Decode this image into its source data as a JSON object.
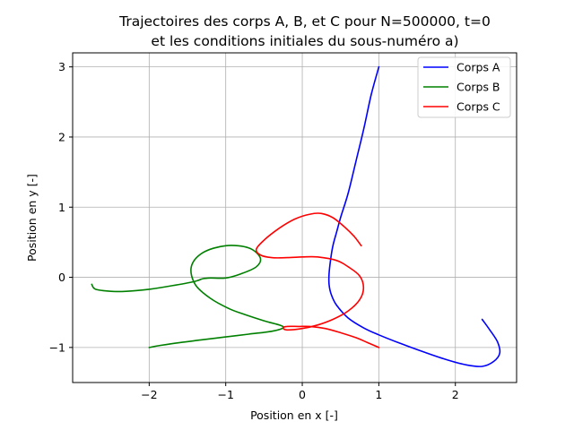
{
  "chart_data": {
    "type": "line",
    "title": "Trajectoires des corps A, B, et C pour N=500000, t=0",
    "subtitle": "et les conditions initiales du sous-numéro a)",
    "xlabel": "Position en x [-]",
    "ylabel": "Position en y [-]",
    "xlim": [
      -3.0,
      2.8
    ],
    "ylim": [
      -1.5,
      3.2
    ],
    "xticks": [
      -2,
      -1,
      0,
      1,
      2
    ],
    "yticks": [
      -1,
      0,
      1,
      2,
      3
    ],
    "grid": true,
    "legend_position": "top-right",
    "series": [
      {
        "name": "Corps A",
        "color": "#0000ff",
        "x": [
          1.0,
          0.9,
          0.8,
          0.7,
          0.6,
          0.5,
          0.45,
          0.4,
          0.37,
          0.35,
          0.35,
          0.38,
          0.45,
          0.6,
          0.8,
          1.0,
          1.3,
          1.6,
          1.9,
          2.15,
          2.35,
          2.5,
          2.58,
          2.55,
          2.45,
          2.35
        ],
        "y": [
          3.0,
          2.6,
          2.1,
          1.65,
          1.2,
          0.85,
          0.65,
          0.45,
          0.25,
          0.05,
          -0.1,
          -0.25,
          -0.4,
          -0.58,
          -0.72,
          -0.82,
          -0.95,
          -1.07,
          -1.18,
          -1.25,
          -1.27,
          -1.2,
          -1.08,
          -0.92,
          -0.75,
          -0.6
        ]
      },
      {
        "name": "Corps B",
        "color": "#008000",
        "x": [
          -2.75,
          -2.7,
          -2.5,
          -2.3,
          -2.0,
          -1.7,
          -1.45,
          -1.35,
          -1.3,
          -1.2,
          -1.0,
          -0.8,
          -0.6,
          -0.55,
          -0.7,
          -1.0,
          -1.3,
          -1.45,
          -1.4,
          -1.2,
          -0.95,
          -0.75,
          -0.5,
          -0.3,
          -0.25,
          -0.4,
          -0.7,
          -1.0,
          -1.3,
          -1.6,
          -1.85,
          -2.0
        ],
        "y": [
          -0.1,
          -0.17,
          -0.2,
          -0.2,
          -0.17,
          -0.12,
          -0.07,
          -0.04,
          -0.02,
          -0.01,
          -0.01,
          0.05,
          0.15,
          0.28,
          0.42,
          0.45,
          0.35,
          0.15,
          -0.1,
          -0.3,
          -0.45,
          -0.53,
          -0.62,
          -0.68,
          -0.72,
          -0.77,
          -0.81,
          -0.85,
          -0.89,
          -0.93,
          -0.97,
          -1.0
        ]
      },
      {
        "name": "Corps C",
        "color": "#ff0000",
        "x": [
          1.0,
          0.85,
          0.7,
          0.5,
          0.3,
          0.1,
          -0.05,
          -0.2,
          -0.25,
          -0.2,
          0.0,
          0.2,
          0.4,
          0.6,
          0.75,
          0.8,
          0.75,
          0.6,
          0.45,
          0.2,
          0.0,
          -0.2,
          -0.4,
          -0.55,
          -0.6,
          -0.5,
          -0.3,
          -0.1,
          0.1,
          0.25,
          0.4,
          0.55,
          0.68,
          0.77
        ],
        "y": [
          -1.0,
          -0.93,
          -0.86,
          -0.79,
          -0.73,
          -0.7,
          -0.7,
          -0.7,
          -0.72,
          -0.75,
          -0.73,
          -0.68,
          -0.6,
          -0.48,
          -0.32,
          -0.15,
          0.02,
          0.15,
          0.24,
          0.29,
          0.29,
          0.28,
          0.28,
          0.32,
          0.4,
          0.53,
          0.7,
          0.83,
          0.9,
          0.91,
          0.85,
          0.72,
          0.58,
          0.45
        ]
      }
    ]
  }
}
